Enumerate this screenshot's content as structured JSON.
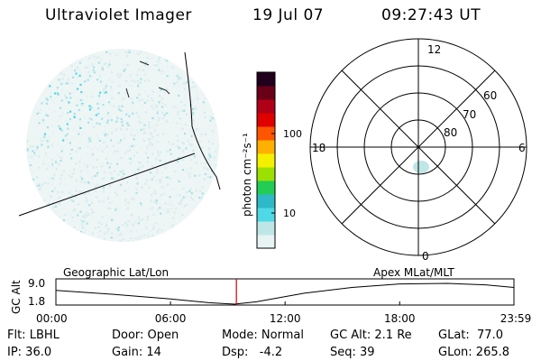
{
  "header": {
    "instrument": "Ultraviolet Imager",
    "date": "19 Jul 07",
    "time": "09:27:43 UT"
  },
  "colorbar": {
    "unit_label": "photon cm⁻²s⁻¹",
    "ticks": [
      "100",
      "10"
    ],
    "scale": "log",
    "colors": [
      "#e8f4f4",
      "#bfe6e6",
      "#4fd8e6",
      "#2fb8c8",
      "#22cc55",
      "#9be000",
      "#f4f000",
      "#ffb000",
      "#ff5500",
      "#e00000",
      "#b00018",
      "#6a0018",
      "#20001c"
    ]
  },
  "polar_plot": {
    "mlt_labels": {
      "top": "12",
      "left": "18",
      "right": "6",
      "bottom": "0"
    },
    "lat_labels": [
      "60",
      "70",
      "80"
    ]
  },
  "timeline": {
    "left_title": "Geographic Lat/Lon",
    "right_title": "Apex  MLat/MLT",
    "ylabel": "GC Alt",
    "y_ticks": [
      "9.0",
      "1.8"
    ],
    "x_ticks": [
      "00:00",
      "06:00",
      "12:00",
      "18:00",
      "23:59"
    ],
    "marker_time": "09:27",
    "altitude_curve": [
      {
        "t": 0.0,
        "alt": 6.6
      },
      {
        "t": 3.0,
        "alt": 5.2
      },
      {
        "t": 6.0,
        "alt": 3.6
      },
      {
        "t": 8.0,
        "alt": 2.3
      },
      {
        "t": 9.35,
        "alt": 1.8
      },
      {
        "t": 10.5,
        "alt": 2.6
      },
      {
        "t": 13.0,
        "alt": 5.6
      },
      {
        "t": 15.5,
        "alt": 7.6
      },
      {
        "t": 18.0,
        "alt": 8.8
      },
      {
        "t": 20.5,
        "alt": 9.0
      },
      {
        "t": 22.5,
        "alt": 8.5
      },
      {
        "t": 23.98,
        "alt": 7.6
      }
    ]
  },
  "status": {
    "flt": "Flt: LBHL",
    "door": "Door: Open",
    "mode": "Mode: Normal",
    "gc_alt": "GC Alt: 2.1 Re",
    "glat": "GLat:  77.0",
    "ip": "IP: 36.0",
    "gain": "Gain: 14",
    "dsp": "Dsp:   -4.2",
    "seq": "Seq: 39",
    "glon": "GLon: 265.8"
  }
}
